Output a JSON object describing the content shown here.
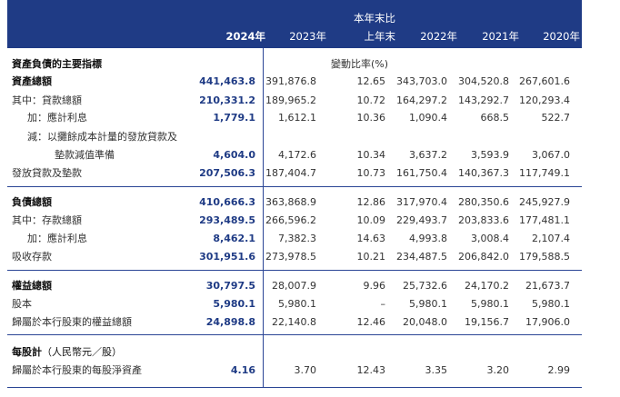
{
  "header": {
    "change_line1": "本年末比",
    "change_line2": "上年末",
    "years": [
      "2024年",
      "2023年",
      "2022年",
      "2021年",
      "2020年"
    ]
  },
  "sections": [
    {
      "rows": [
        {
          "label": "資產負債的主要指標",
          "style": "bold",
          "change_text": "變動比率(%)"
        },
        {
          "label": "資產總額",
          "style": "bold",
          "values": [
            "441,463.8",
            "391,876.8",
            "12.65",
            "343,703.0",
            "304,520.8",
            "267,601.6"
          ]
        },
        {
          "label": "其中：貸款總額",
          "values": [
            "210,331.2",
            "189,965.2",
            "10.72",
            "164,297.2",
            "143,292.7",
            "120,293.4"
          ]
        },
        {
          "label": "加：應計利息",
          "style": "indent",
          "values": [
            "1,779.1",
            "1,612.1",
            "10.36",
            "1,090.4",
            "668.5",
            "522.7"
          ]
        },
        {
          "label": "減：以攤餘成本計量的發放貸款及",
          "style": "indent"
        },
        {
          "label": "墊款減值準備",
          "style": "indent2",
          "values": [
            "4,604.0",
            "4,172.6",
            "10.34",
            "3,637.2",
            "3,593.9",
            "3,067.0"
          ]
        },
        {
          "label": "發放貸款及墊款",
          "values": [
            "207,506.3",
            "187,404.7",
            "10.73",
            "161,750.4",
            "140,367.3",
            "117,749.1"
          ]
        }
      ]
    },
    {
      "rows": [
        {
          "label": "負債總額",
          "style": "bold",
          "values": [
            "410,666.3",
            "363,868.9",
            "12.86",
            "317,970.4",
            "280,350.6",
            "245,927.9"
          ]
        },
        {
          "label": "其中：存款總額",
          "values": [
            "293,489.5",
            "266,596.2",
            "10.09",
            "229,493.7",
            "203,833.6",
            "177,481.1"
          ]
        },
        {
          "label": "加：應計利息",
          "style": "indent",
          "values": [
            "8,462.1",
            "7,382.3",
            "14.63",
            "4,993.8",
            "3,008.4",
            "2,107.4"
          ]
        },
        {
          "label": "吸收存款",
          "values": [
            "301,951.6",
            "273,978.5",
            "10.21",
            "234,487.5",
            "206,842.0",
            "179,588.5"
          ]
        }
      ]
    },
    {
      "rows": [
        {
          "label": "權益總額",
          "style": "bold",
          "values": [
            "30,797.5",
            "28,007.9",
            "9.96",
            "25,732.6",
            "24,170.2",
            "21,673.7"
          ]
        },
        {
          "label": "股本",
          "values": [
            "5,980.1",
            "5,980.1",
            "–",
            "5,980.1",
            "5,980.1",
            "5,980.1"
          ]
        },
        {
          "label": "歸屬於本行股東的權益總額",
          "values": [
            "24,898.8",
            "22,140.8",
            "12.46",
            "20,048.0",
            "19,156.7",
            "17,906.0"
          ]
        }
      ]
    },
    {
      "rows": [
        {
          "label": "每股計",
          "label_suffix": "（人民幣元／股）",
          "style": "bold"
        },
        {
          "label": "歸屬於本行股東的每股淨資產",
          "values": [
            "4.16",
            "3.70",
            "12.43",
            "3.35",
            "3.20",
            "2.99"
          ]
        }
      ]
    }
  ]
}
